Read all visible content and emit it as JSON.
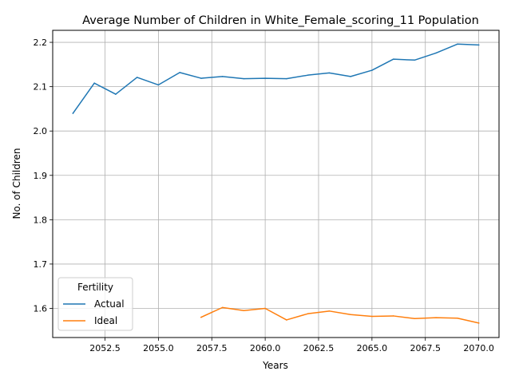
{
  "chart_data": {
    "type": "line",
    "title": "Average Number of Children in White_Female_scoring_11 Population",
    "xlabel": "Years",
    "ylabel": "No. of Children",
    "xlim": [
      2050.05,
      2070.95
    ],
    "ylim": [
      1.5343,
      2.2271
    ],
    "xticks": [
      2052.5,
      2055.0,
      2057.5,
      2060.0,
      2062.5,
      2065.0,
      2067.5,
      2070.0
    ],
    "xtick_labels": [
      "2052.5",
      "2055.0",
      "2057.5",
      "2060.0",
      "2062.5",
      "2065.0",
      "2067.5",
      "2070.0"
    ],
    "yticks": [
      1.6,
      1.7,
      1.8,
      1.9,
      2.0,
      2.1,
      2.2
    ],
    "ytick_labels": [
      "1.6",
      "1.7",
      "1.8",
      "1.9",
      "2.0",
      "2.1",
      "2.2"
    ],
    "grid": true,
    "legend": {
      "title": "Fertility",
      "position": "lower-left"
    },
    "series": [
      {
        "name": "Actual",
        "color": "#1f77b4",
        "x": [
          2051,
          2052,
          2053,
          2054,
          2055,
          2056,
          2057,
          2058,
          2059,
          2060,
          2061,
          2062,
          2063,
          2064,
          2065,
          2066,
          2067,
          2068,
          2069,
          2070
        ],
        "y": [
          2.04,
          2.108,
          2.083,
          2.121,
          2.104,
          2.132,
          2.119,
          2.123,
          2.118,
          2.119,
          2.118,
          2.126,
          2.131,
          2.123,
          2.137,
          2.162,
          2.16,
          2.176,
          2.196,
          2.194
        ]
      },
      {
        "name": "Ideal",
        "color": "#ff7f0e",
        "x": [
          2057,
          2058,
          2059,
          2060,
          2061,
          2062,
          2063,
          2064,
          2065,
          2066,
          2067,
          2068,
          2069,
          2070
        ],
        "y": [
          1.58,
          1.602,
          1.595,
          1.6,
          1.574,
          1.588,
          1.594,
          1.586,
          1.582,
          1.583,
          1.577,
          1.579,
          1.578,
          1.567
        ]
      }
    ]
  }
}
